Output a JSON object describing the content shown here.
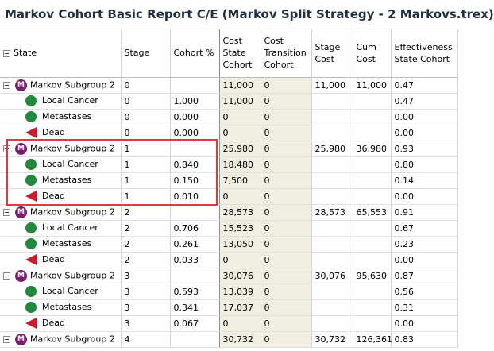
{
  "title": "Markov Cohort Basic Report C/E (Markov Split Strategy - 2 Markovs.trex)",
  "columns": [
    "State",
    "Stage",
    "Cohort %",
    "Cost State Cohort",
    "Cost Transition Cohort",
    "Stage Cost",
    "Cum Cost",
    "Effectiveness State Cohort"
  ],
  "rows": [
    {
      "type": "markov",
      "state": "Markov Subgroup 2",
      "stage": "0",
      "cohort": "",
      "cost_state": "11,000",
      "cost_trans": "0",
      "stage_cost": "11,000",
      "cum_cost": "11,000",
      "eff": "0.47"
    },
    {
      "type": "chance",
      "state": "Local Cancer",
      "stage": "0",
      "cohort": "1.000",
      "cost_state": "11,000",
      "cost_trans": "0",
      "stage_cost": "",
      "cum_cost": "",
      "eff": "0.47"
    },
    {
      "type": "chance",
      "state": "Metastases",
      "stage": "0",
      "cohort": "0.000",
      "cost_state": "0",
      "cost_trans": "0",
      "stage_cost": "",
      "cum_cost": "",
      "eff": "0.00"
    },
    {
      "type": "terminal",
      "state": "Dead",
      "stage": "0",
      "cohort": "0.000",
      "cost_state": "0",
      "cost_trans": "0",
      "stage_cost": "",
      "cum_cost": "",
      "eff": "0.00"
    },
    {
      "type": "markov",
      "state": "Markov Subgroup 2",
      "stage": "1",
      "cohort": "",
      "cost_state": "25,980",
      "cost_trans": "0",
      "stage_cost": "25,980",
      "cum_cost": "36,980",
      "eff": "0.93"
    },
    {
      "type": "chance",
      "state": "Local Cancer",
      "stage": "1",
      "cohort": "0.840",
      "cost_state": "18,480",
      "cost_trans": "0",
      "stage_cost": "",
      "cum_cost": "",
      "eff": "0.80"
    },
    {
      "type": "chance",
      "state": "Metastases",
      "stage": "1",
      "cohort": "0.150",
      "cost_state": "7,500",
      "cost_trans": "0",
      "stage_cost": "",
      "cum_cost": "",
      "eff": "0.14"
    },
    {
      "type": "terminal",
      "state": "Dead",
      "stage": "1",
      "cohort": "0.010",
      "cost_state": "0",
      "cost_trans": "0",
      "stage_cost": "",
      "cum_cost": "",
      "eff": "0.00"
    },
    {
      "type": "markov",
      "state": "Markov Subgroup 2",
      "stage": "2",
      "cohort": "",
      "cost_state": "28,573",
      "cost_trans": "0",
      "stage_cost": "28,573",
      "cum_cost": "65,553",
      "eff": "0.91"
    },
    {
      "type": "chance",
      "state": "Local Cancer",
      "stage": "2",
      "cohort": "0.706",
      "cost_state": "15,523",
      "cost_trans": "0",
      "stage_cost": "",
      "cum_cost": "",
      "eff": "0.67"
    },
    {
      "type": "chance",
      "state": "Metastases",
      "stage": "2",
      "cohort": "0.261",
      "cost_state": "13,050",
      "cost_trans": "0",
      "stage_cost": "",
      "cum_cost": "",
      "eff": "0.23"
    },
    {
      "type": "terminal",
      "state": "Dead",
      "stage": "2",
      "cohort": "0.033",
      "cost_state": "0",
      "cost_trans": "0",
      "stage_cost": "",
      "cum_cost": "",
      "eff": "0.00"
    },
    {
      "type": "markov",
      "state": "Markov Subgroup 2",
      "stage": "3",
      "cohort": "",
      "cost_state": "30,076",
      "cost_trans": "0",
      "stage_cost": "30,076",
      "cum_cost": "95,630",
      "eff": "0.87"
    },
    {
      "type": "chance",
      "state": "Local Cancer",
      "stage": "3",
      "cohort": "0.593",
      "cost_state": "13,039",
      "cost_trans": "0",
      "stage_cost": "",
      "cum_cost": "",
      "eff": "0.56"
    },
    {
      "type": "chance",
      "state": "Metastases",
      "stage": "3",
      "cohort": "0.341",
      "cost_state": "17,037",
      "cost_trans": "0",
      "stage_cost": "",
      "cum_cost": "",
      "eff": "0.31"
    },
    {
      "type": "terminal",
      "state": "Dead",
      "stage": "3",
      "cohort": "0.067",
      "cost_state": "0",
      "cost_trans": "0",
      "stage_cost": "",
      "cum_cost": "",
      "eff": "0.00"
    },
    {
      "type": "markov",
      "state": "Markov Subgroup 2",
      "stage": "4",
      "cohort": "",
      "cost_state": "30,732",
      "cost_trans": "0",
      "stage_cost": "30,732",
      "cum_cost": "126,361",
      "eff": "0.83"
    }
  ],
  "markov_badge": "M",
  "colors": {
    "markov_badge": "#7b1f6f",
    "chance_node": "#1f8a3c",
    "terminal_node": "#d01a2a",
    "highlight_box": "#e03a3a",
    "shaded_column": "#efeee0"
  },
  "icons": {
    "collapse": "collapse-box-icon",
    "markov": "markov-node-icon",
    "chance": "chance-node-icon",
    "terminal": "terminal-node-icon"
  }
}
